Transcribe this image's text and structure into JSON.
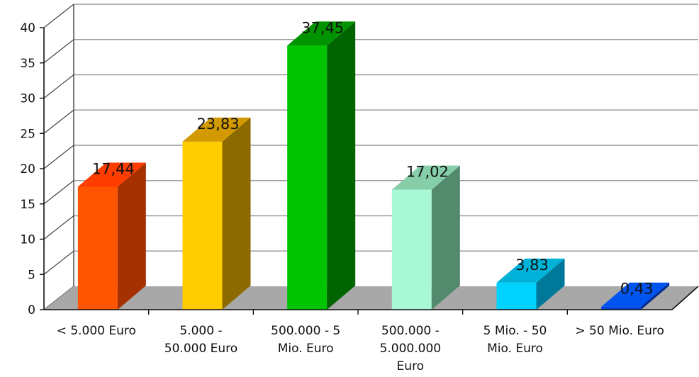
{
  "chart_data": {
    "type": "bar",
    "style": "3d-column",
    "categories": [
      [
        "< 5.000 Euro"
      ],
      [
        "5.000 -",
        "50.000 Euro"
      ],
      [
        "500.000 - 5",
        "Mio. Euro"
      ],
      [
        "500.000 -",
        "5.000.000",
        "Euro"
      ],
      [
        "5 Mio. - 50",
        "Mio. Euro"
      ],
      [
        "> 50 Mio. Euro"
      ]
    ],
    "values": [
      17.44,
      23.83,
      37.45,
      17.02,
      3.83,
      0.43
    ],
    "data_labels": [
      "17,44",
      "23,83",
      "37,45",
      "17,02",
      "3,83",
      "0,43"
    ],
    "y_ticks": [
      "0",
      "5",
      "10",
      "15",
      "20",
      "25",
      "30",
      "35",
      "40"
    ],
    "ylim": [
      0,
      40
    ],
    "grid": true,
    "legend": "none",
    "colors": [
      {
        "front": "#ff5500",
        "side": "#a53000",
        "top": "#ff3d00"
      },
      {
        "front": "#ffcc00",
        "side": "#8c6a00",
        "top": "#d29900"
      },
      {
        "front": "#00c400",
        "side": "#006400",
        "top": "#009300"
      },
      {
        "front": "#a8f7d6",
        "side": "#538a6e",
        "top": "#86ceaa"
      },
      {
        "front": "#00d2ff",
        "side": "#00789a",
        "top": "#00b2d8"
      },
      {
        "front": "#0044e0",
        "side": "#002a90",
        "top": "#0055f0"
      }
    ],
    "floor_color": "#a8a8a8"
  }
}
